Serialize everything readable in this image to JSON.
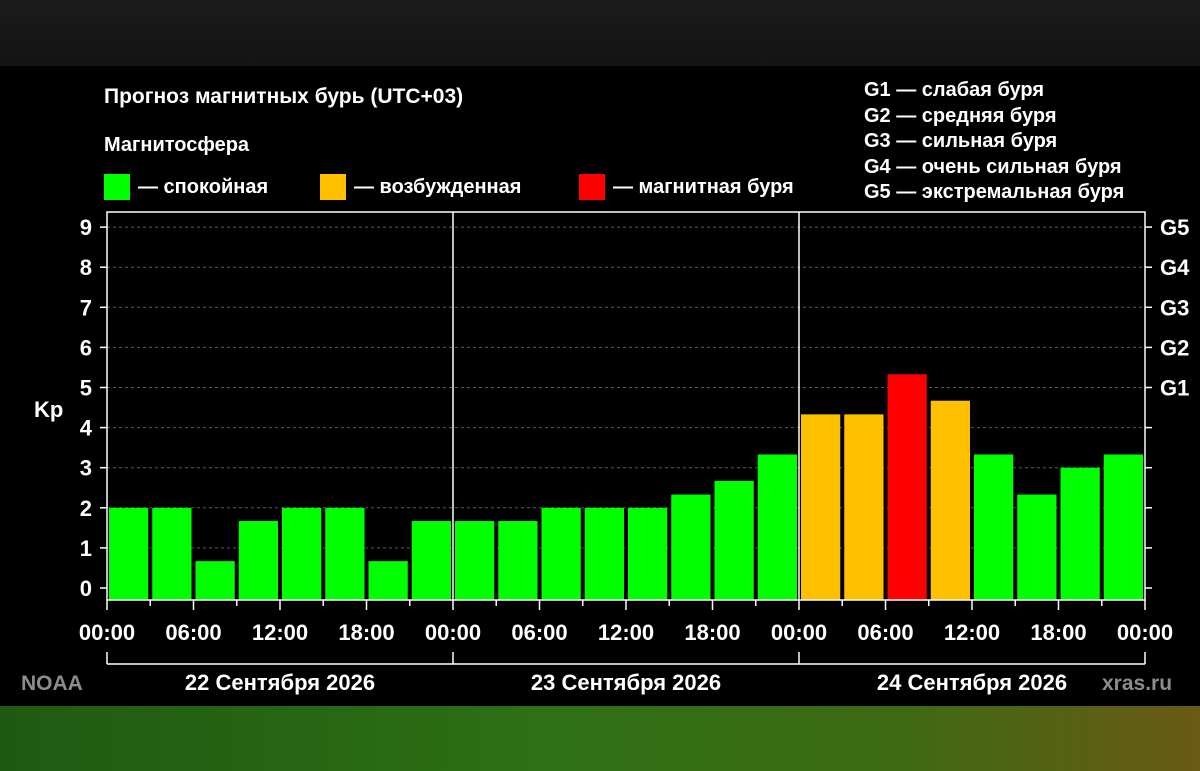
{
  "title": "Прогноз магнитных бурь (UTC+03)",
  "legend": {
    "title": "Магнитосфера",
    "items": [
      {
        "label": "— спокойная",
        "color": "#00ff00"
      },
      {
        "label": "— возбужденная",
        "color": "#ffc000"
      },
      {
        "label": "— магнитная буря",
        "color": "#ff0000"
      }
    ]
  },
  "g_scale": [
    "G1 — слабая буря",
    "G2 — средняя буря",
    "G3 — сильная буря",
    "G4 — очень сильная буря",
    "G5 — экстремальная буря"
  ],
  "credits": {
    "left": "NOAA",
    "right": "xras.ru"
  },
  "chart_data": {
    "type": "bar",
    "ylabel": "Kp",
    "ylim": [
      0,
      9
    ],
    "yticks": [
      "0",
      "1",
      "2",
      "3",
      "4",
      "5",
      "6",
      "7",
      "8",
      "9"
    ],
    "right_ticks": [
      {
        "kp": 5,
        "label": "G1"
      },
      {
        "kp": 6,
        "label": "G2"
      },
      {
        "kp": 7,
        "label": "G3"
      },
      {
        "kp": 8,
        "label": "G4"
      },
      {
        "kp": 9,
        "label": "G5"
      }
    ],
    "xticks": [
      "00:00",
      "06:00",
      "12:00",
      "18:00",
      "00:00",
      "06:00",
      "12:00",
      "18:00",
      "00:00",
      "06:00",
      "12:00",
      "18:00",
      "00:00"
    ],
    "days": [
      "22 Сентября 2026",
      "23 Сентября 2026",
      "24 Сентября 2026"
    ],
    "grid": true,
    "legend_position": "top",
    "values": [
      2.0,
      2.0,
      0.67,
      1.67,
      2.0,
      2.0,
      0.67,
      1.67,
      1.67,
      1.67,
      2.0,
      2.0,
      2.0,
      2.33,
      2.67,
      3.33,
      4.33,
      4.33,
      5.33,
      4.67,
      3.33,
      2.33,
      3.0,
      3.33
    ],
    "colors": {
      "quiet": "#00ff00",
      "active": "#ffc000",
      "storm": "#ff0000"
    },
    "bar_levels": [
      "quiet",
      "quiet",
      "quiet",
      "quiet",
      "quiet",
      "quiet",
      "quiet",
      "quiet",
      "quiet",
      "quiet",
      "quiet",
      "quiet",
      "quiet",
      "quiet",
      "quiet",
      "quiet",
      "active",
      "active",
      "storm",
      "active",
      "quiet",
      "quiet",
      "quiet",
      "quiet"
    ]
  }
}
